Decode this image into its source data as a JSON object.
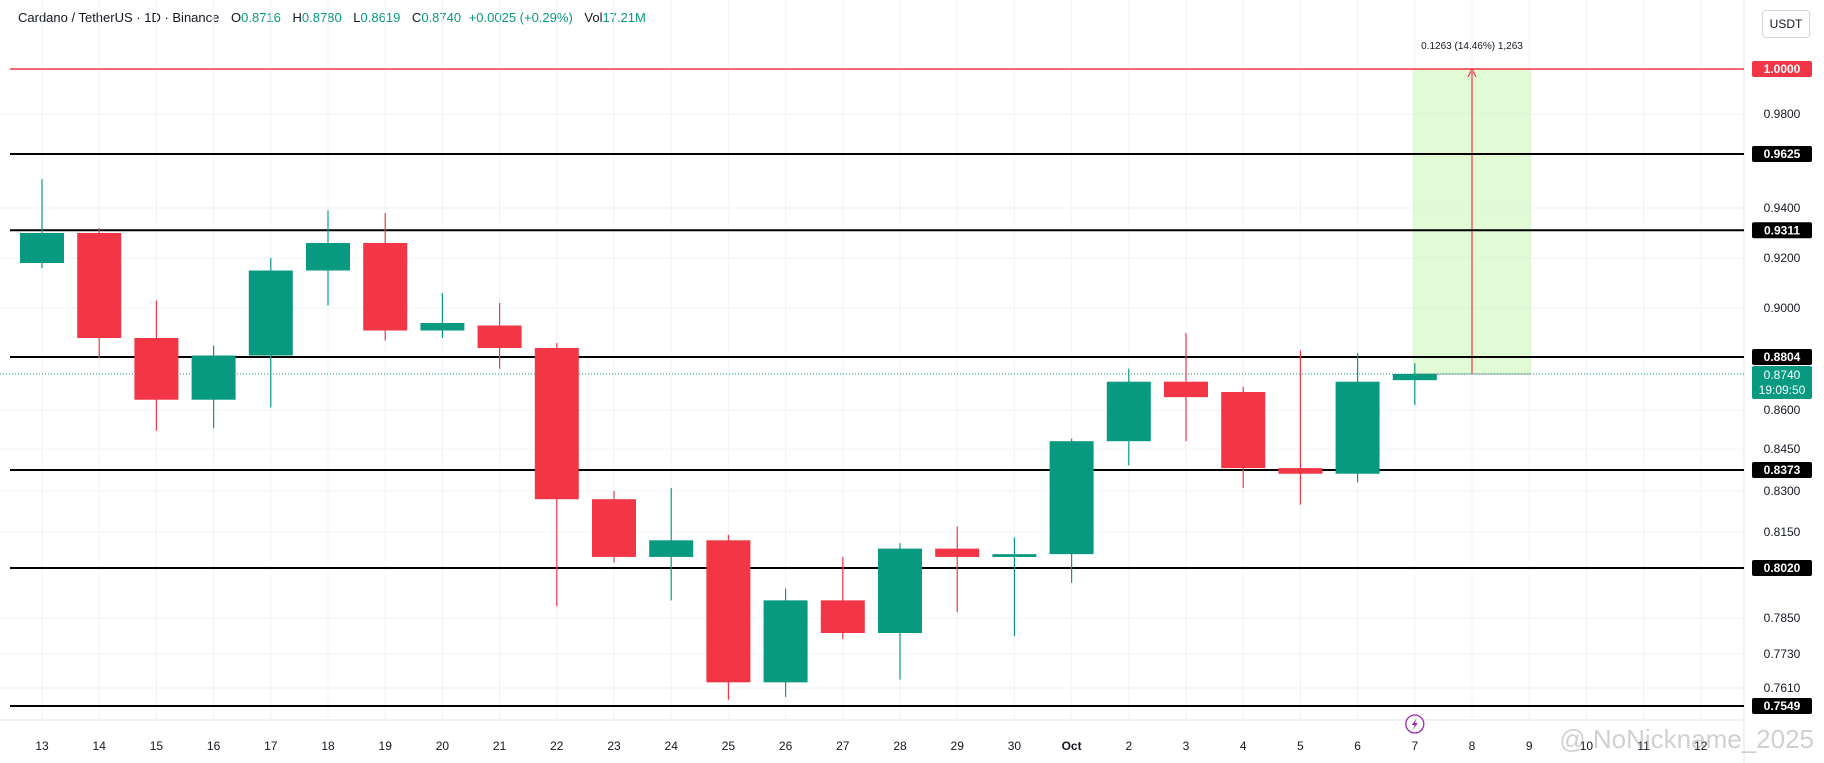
{
  "header": {
    "symbol": "Cardano / TetherUS · 1D · Binance",
    "o_label": "O",
    "o_value": "0.8716",
    "h_label": "H",
    "h_value": "0.8780",
    "l_label": "L",
    "l_value": "0.8619",
    "c_label": "C",
    "c_value": "0.8740",
    "change": "+0.0025 (+0.29%)",
    "vol_label": "Vol",
    "vol_value": "17.21M"
  },
  "currency_button": "USDT",
  "watermark": "@ NoNickname_2025",
  "colors": {
    "up": "#089981",
    "down": "#f23645",
    "grid": "#f0f3fa",
    "target_line": "#f23645",
    "target_zone": "#c8f7b4",
    "level_line": "#000000"
  },
  "chart_data": {
    "type": "candlestick",
    "x_labels": [
      "13",
      "14",
      "15",
      "16",
      "17",
      "18",
      "19",
      "20",
      "21",
      "22",
      "23",
      "24",
      "25",
      "26",
      "27",
      "28",
      "29",
      "30",
      "Oct",
      "2",
      "3",
      "4",
      "5",
      "6",
      "7",
      "8",
      "9",
      "10",
      "11",
      "12"
    ],
    "y_tick_labels": [
      "0.9800",
      "0.9400",
      "0.9200",
      "0.9000",
      "0.8600",
      "0.8450",
      "0.8300",
      "0.8150",
      "0.7850",
      "0.7730",
      "0.7610"
    ],
    "candles": [
      {
        "date": "13",
        "o": 0.918,
        "h": 0.952,
        "l": 0.916,
        "c": 0.93
      },
      {
        "date": "14",
        "o": 0.93,
        "h": 0.932,
        "l": 0.88,
        "c": 0.888
      },
      {
        "date": "15",
        "o": 0.888,
        "h": 0.903,
        "l": 0.852,
        "c": 0.864
      },
      {
        "date": "16",
        "o": 0.864,
        "h": 0.885,
        "l": 0.853,
        "c": 0.881
      },
      {
        "date": "17",
        "o": 0.881,
        "h": 0.92,
        "l": 0.861,
        "c": 0.915
      },
      {
        "date": "18",
        "o": 0.915,
        "h": 0.939,
        "l": 0.901,
        "c": 0.926
      },
      {
        "date": "19",
        "o": 0.926,
        "h": 0.938,
        "l": 0.887,
        "c": 0.891
      },
      {
        "date": "20",
        "o": 0.891,
        "h": 0.906,
        "l": 0.888,
        "c": 0.894
      },
      {
        "date": "21",
        "o": 0.893,
        "h": 0.902,
        "l": 0.876,
        "c": 0.884
      },
      {
        "date": "22",
        "o": 0.884,
        "h": 0.886,
        "l": 0.789,
        "c": 0.827
      },
      {
        "date": "23",
        "o": 0.827,
        "h": 0.83,
        "l": 0.804,
        "c": 0.806
      },
      {
        "date": "24",
        "o": 0.806,
        "h": 0.831,
        "l": 0.791,
        "c": 0.812
      },
      {
        "date": "25",
        "o": 0.812,
        "h": 0.814,
        "l": 0.757,
        "c": 0.763
      },
      {
        "date": "26",
        "o": 0.763,
        "h": 0.795,
        "l": 0.758,
        "c": 0.791
      },
      {
        "date": "27",
        "o": 0.791,
        "h": 0.806,
        "l": 0.778,
        "c": 0.78
      },
      {
        "date": "28",
        "o": 0.78,
        "h": 0.811,
        "l": 0.764,
        "c": 0.809
      },
      {
        "date": "29",
        "o": 0.809,
        "h": 0.817,
        "l": 0.787,
        "c": 0.806
      },
      {
        "date": "30",
        "o": 0.806,
        "h": 0.813,
        "l": 0.779,
        "c": 0.807
      },
      {
        "date": "Oct",
        "o": 0.807,
        "h": 0.849,
        "l": 0.797,
        "c": 0.848
      },
      {
        "date": "2",
        "o": 0.848,
        "h": 0.876,
        "l": 0.839,
        "c": 0.871
      },
      {
        "date": "3",
        "o": 0.871,
        "h": 0.89,
        "l": 0.848,
        "c": 0.865
      },
      {
        "date": "4",
        "o": 0.867,
        "h": 0.869,
        "l": 0.831,
        "c": 0.838
      },
      {
        "date": "5",
        "o": 0.838,
        "h": 0.883,
        "l": 0.825,
        "c": 0.836
      },
      {
        "date": "6",
        "o": 0.836,
        "h": 0.882,
        "l": 0.833,
        "c": 0.871
      },
      {
        "date": "7",
        "o": 0.8716,
        "h": 0.878,
        "l": 0.8619,
        "c": 0.874
      }
    ],
    "horizontal_levels": [
      {
        "label": "1.0000",
        "value": 1.0,
        "color": "#f23645"
      },
      {
        "label": "0.9625",
        "value": 0.9625,
        "color": "#000000"
      },
      {
        "label": "0.9311",
        "value": 0.9311,
        "color": "#000000"
      },
      {
        "label": "0.8804",
        "value": 0.8804,
        "color": "#000000"
      },
      {
        "label": "0.8373",
        "value": 0.8373,
        "color": "#000000"
      },
      {
        "label": "0.8020",
        "value": 0.802,
        "color": "#000000"
      },
      {
        "label": "0.7549",
        "value": 0.7549,
        "color": "#000000"
      }
    ],
    "current_price": {
      "label": "0.8740",
      "value": 0.874,
      "countdown": "19:09:50"
    },
    "projection": {
      "from_date": "7",
      "to_date": "9",
      "from_value": 0.874,
      "to_value": 1.0,
      "label": "0.1263 (14.46%) 1,263"
    }
  }
}
